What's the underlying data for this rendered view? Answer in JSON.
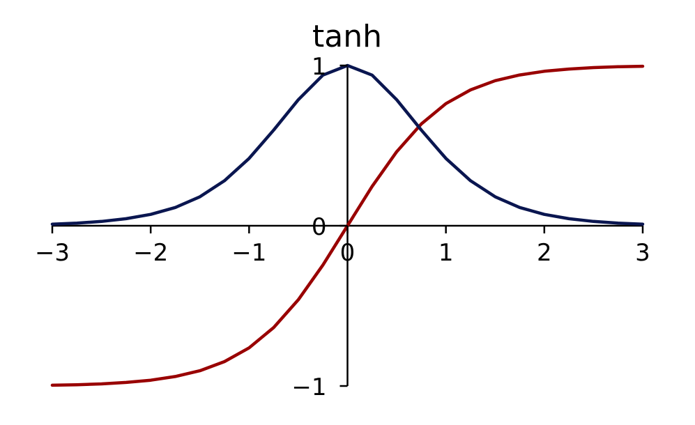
{
  "chart_data": {
    "type": "line",
    "title": "tanh",
    "xlabel": "",
    "ylabel": "",
    "xlim": [
      -3,
      3
    ],
    "ylim": [
      -1,
      1
    ],
    "x_ticks": [
      -3,
      -2,
      -1,
      0,
      1,
      2,
      3
    ],
    "x_tick_labels": [
      "−3",
      "−2",
      "−1",
      "0",
      "1",
      "2",
      "3"
    ],
    "y_ticks": [
      -1,
      0,
      1
    ],
    "y_tick_labels": [
      "−1",
      "0",
      "1"
    ],
    "grid": false,
    "spines": "centered",
    "x": [
      -3,
      -2.75,
      -2.5,
      -2.25,
      -2,
      -1.75,
      -1.5,
      -1.25,
      -1,
      -0.75,
      -0.5,
      -0.25,
      0,
      0.25,
      0.5,
      0.75,
      1,
      1.25,
      1.5,
      1.75,
      2,
      2.25,
      2.5,
      2.75,
      3
    ],
    "series": [
      {
        "color": "#990000",
        "values": [
          -0.995,
          -0.992,
          -0.987,
          -0.978,
          -0.964,
          -0.941,
          -0.905,
          -0.848,
          -0.762,
          -0.635,
          -0.462,
          -0.245,
          0,
          0.245,
          0.462,
          0.635,
          0.762,
          0.848,
          0.905,
          0.941,
          0.964,
          0.978,
          0.987,
          0.992,
          0.995
        ]
      },
      {
        "color": "#0a1650",
        "values": [
          0.01,
          0.016,
          0.027,
          0.044,
          0.071,
          0.114,
          0.181,
          0.281,
          0.42,
          0.597,
          0.786,
          0.94,
          1,
          0.94,
          0.786,
          0.597,
          0.42,
          0.281,
          0.181,
          0.114,
          0.071,
          0.044,
          0.027,
          0.016,
          0.01
        ]
      }
    ]
  }
}
